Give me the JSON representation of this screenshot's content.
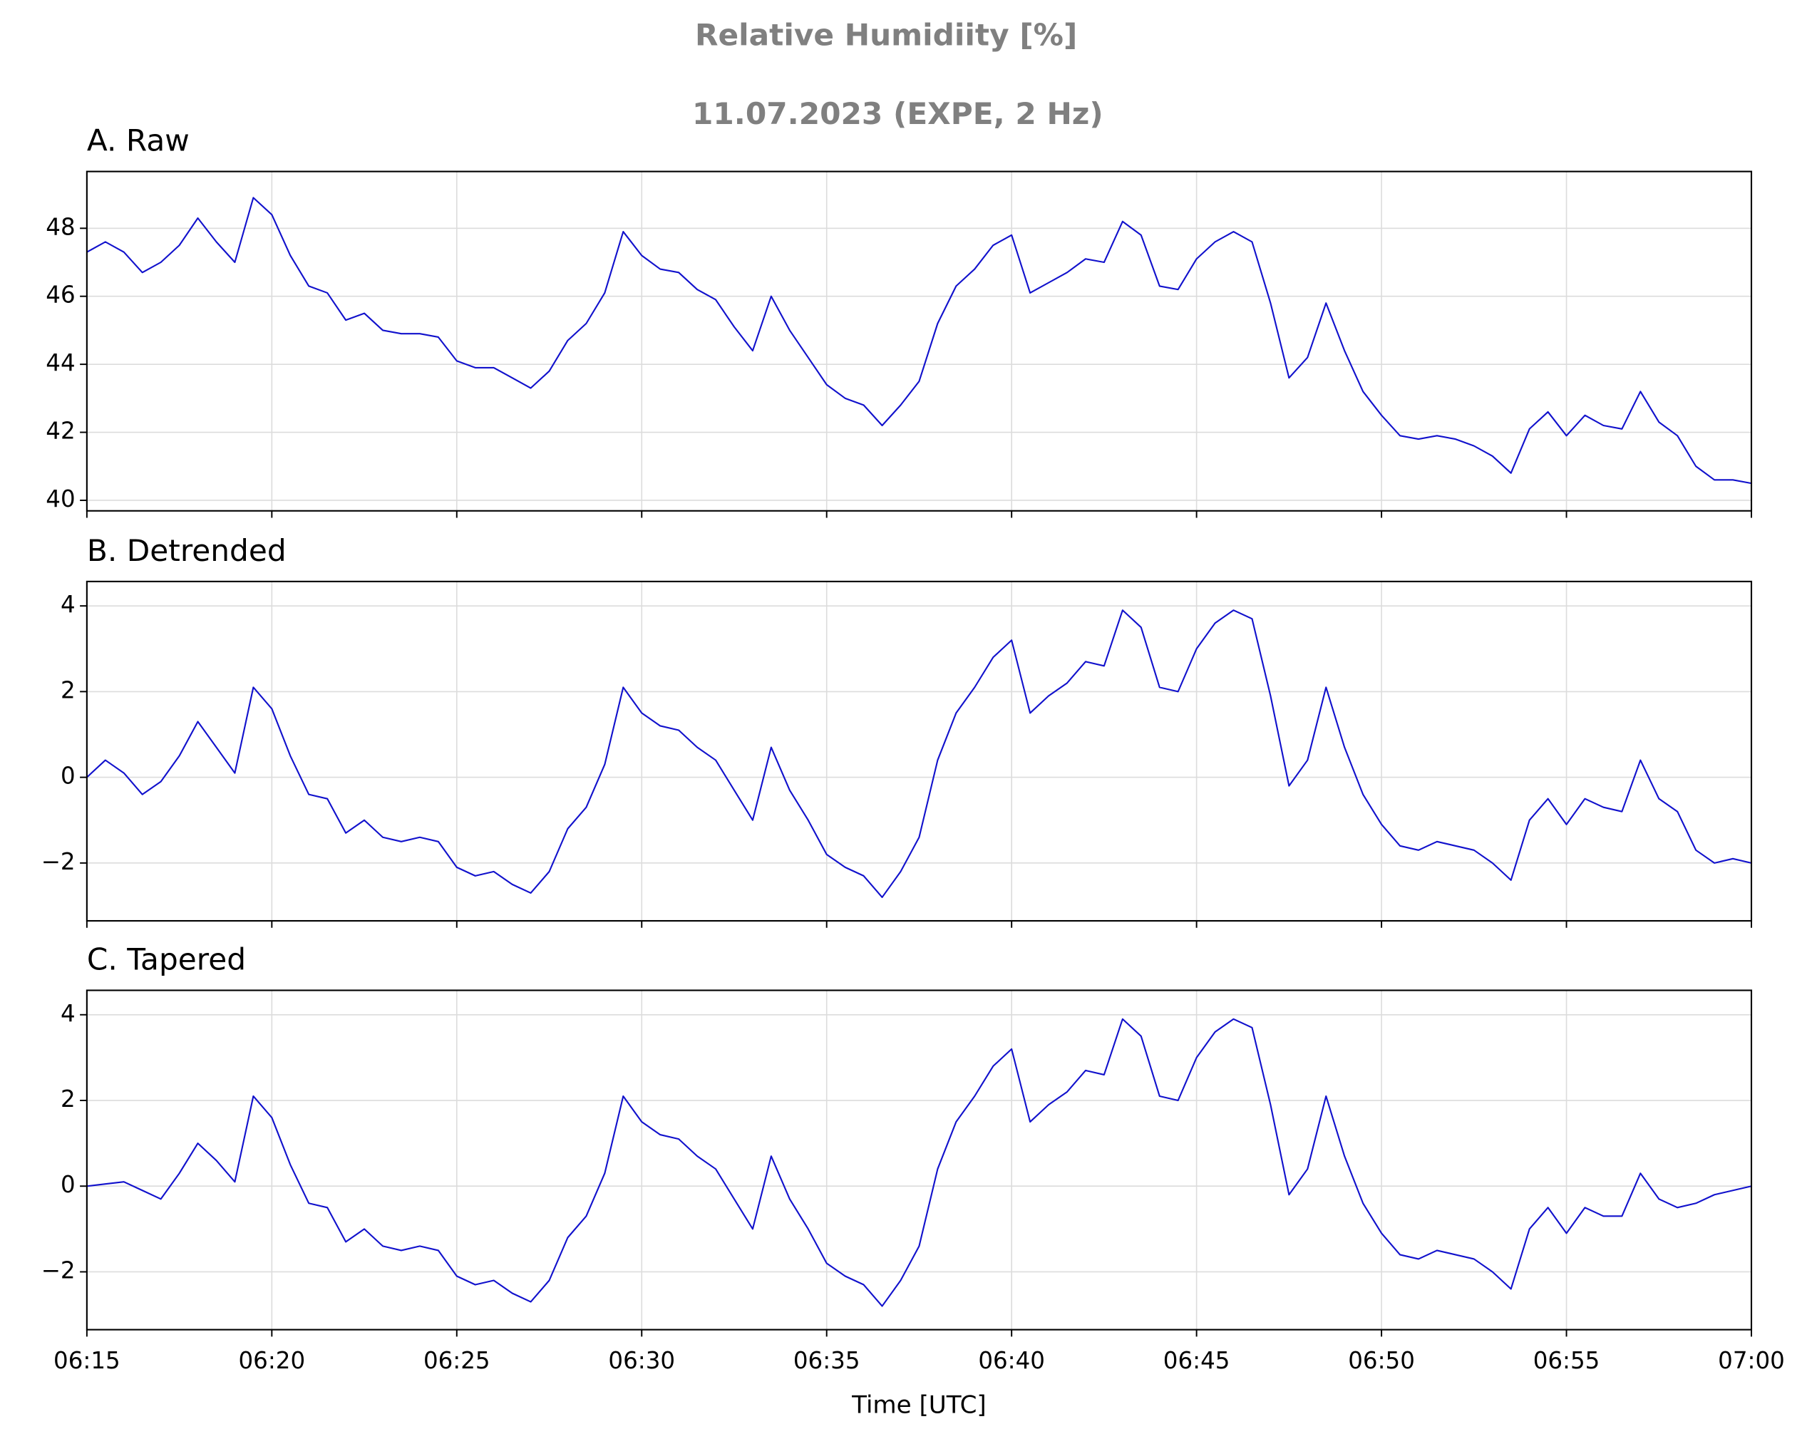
{
  "figure": {
    "title": "Relative Humidiity [%]",
    "subtitle": "11.07.2023 (EXPE, 2 Hz)"
  },
  "chart_data": [
    {
      "type": "line",
      "title": "A. Raw",
      "grid": true,
      "x": [
        "06:15:00",
        "06:15:30",
        "06:16:00",
        "06:16:30",
        "06:17:00",
        "06:17:30",
        "06:18:00",
        "06:18:30",
        "06:19:00",
        "06:19:30",
        "06:20:00",
        "06:20:30",
        "06:21:00",
        "06:21:30",
        "06:22:00",
        "06:22:30",
        "06:23:00",
        "06:23:30",
        "06:24:00",
        "06:24:30",
        "06:25:00",
        "06:25:30",
        "06:26:00",
        "06:26:30",
        "06:27:00",
        "06:27:30",
        "06:28:00",
        "06:28:30",
        "06:29:00",
        "06:29:30",
        "06:30:00",
        "06:30:30",
        "06:31:00",
        "06:31:30",
        "06:32:00",
        "06:32:30",
        "06:33:00",
        "06:33:30",
        "06:34:00",
        "06:34:30",
        "06:35:00",
        "06:35:30",
        "06:36:00",
        "06:36:30",
        "06:37:00",
        "06:37:30",
        "06:38:00",
        "06:38:30",
        "06:39:00",
        "06:39:30",
        "06:40:00",
        "06:40:30",
        "06:41:00",
        "06:41:30",
        "06:42:00",
        "06:42:30",
        "06:43:00",
        "06:43:30",
        "06:44:00",
        "06:44:30",
        "06:45:00",
        "06:45:30",
        "06:46:00",
        "06:46:30",
        "06:47:00",
        "06:47:30",
        "06:48:00",
        "06:48:30",
        "06:49:00",
        "06:49:30",
        "06:50:00",
        "06:50:30",
        "06:51:00",
        "06:51:30",
        "06:52:00",
        "06:52:30",
        "06:53:00",
        "06:53:30",
        "06:54:00",
        "06:54:30",
        "06:55:00",
        "06:55:30",
        "06:56:00",
        "06:56:30",
        "06:57:00",
        "06:57:30",
        "06:58:00",
        "06:58:30",
        "06:59:00",
        "06:59:30",
        "07:00:00"
      ],
      "series": [
        {
          "color": "#1111cc",
          "values": [
            47.3,
            47.6,
            47.3,
            46.7,
            47.0,
            47.5,
            48.3,
            47.6,
            47.0,
            48.9,
            48.4,
            47.2,
            46.3,
            46.1,
            45.3,
            45.5,
            45.0,
            44.9,
            44.9,
            44.8,
            44.1,
            43.9,
            43.9,
            43.6,
            43.3,
            43.8,
            44.7,
            45.2,
            46.1,
            47.9,
            47.2,
            46.8,
            46.7,
            46.2,
            45.9,
            45.1,
            44.4,
            46.0,
            45.0,
            44.2,
            43.4,
            43.0,
            42.8,
            42.2,
            42.8,
            43.5,
            45.2,
            46.3,
            46.8,
            47.5,
            47.8,
            46.1,
            46.4,
            46.7,
            47.1,
            47.0,
            48.2,
            47.8,
            46.3,
            46.2,
            47.1,
            47.6,
            47.9,
            47.6,
            45.8,
            43.6,
            44.2,
            45.8,
            44.4,
            43.2,
            42.5,
            41.9,
            41.8,
            41.9,
            41.8,
            41.6,
            41.3,
            40.8,
            42.1,
            42.6,
            41.9,
            42.5,
            42.2,
            42.1,
            43.2,
            42.3,
            41.9,
            41.0,
            40.6,
            40.6,
            40.5
          ]
        }
      ],
      "xlim": [
        "06:15",
        "07:00"
      ],
      "xticks": [
        "06:15",
        "06:20",
        "06:25",
        "06:30",
        "06:35",
        "06:40",
        "06:45",
        "06:50",
        "06:55",
        "07:00"
      ],
      "ylim": [
        39.69,
        49.67
      ],
      "yticks": [
        40,
        42,
        44,
        46,
        48
      ]
    },
    {
      "type": "line",
      "title": "B. Detrended",
      "grid": true,
      "x": [
        "06:15:00",
        "06:15:30",
        "06:16:00",
        "06:16:30",
        "06:17:00",
        "06:17:30",
        "06:18:00",
        "06:18:30",
        "06:19:00",
        "06:19:30",
        "06:20:00",
        "06:20:30",
        "06:21:00",
        "06:21:30",
        "06:22:00",
        "06:22:30",
        "06:23:00",
        "06:23:30",
        "06:24:00",
        "06:24:30",
        "06:25:00",
        "06:25:30",
        "06:26:00",
        "06:26:30",
        "06:27:00",
        "06:27:30",
        "06:28:00",
        "06:28:30",
        "06:29:00",
        "06:29:30",
        "06:30:00",
        "06:30:30",
        "06:31:00",
        "06:31:30",
        "06:32:00",
        "06:32:30",
        "06:33:00",
        "06:33:30",
        "06:34:00",
        "06:34:30",
        "06:35:00",
        "06:35:30",
        "06:36:00",
        "06:36:30",
        "06:37:00",
        "06:37:30",
        "06:38:00",
        "06:38:30",
        "06:39:00",
        "06:39:30",
        "06:40:00",
        "06:40:30",
        "06:41:00",
        "06:41:30",
        "06:42:00",
        "06:42:30",
        "06:43:00",
        "06:43:30",
        "06:44:00",
        "06:44:30",
        "06:45:00",
        "06:45:30",
        "06:46:00",
        "06:46:30",
        "06:47:00",
        "06:47:30",
        "06:48:00",
        "06:48:30",
        "06:49:00",
        "06:49:30",
        "06:50:00",
        "06:50:30",
        "06:51:00",
        "06:51:30",
        "06:52:00",
        "06:52:30",
        "06:53:00",
        "06:53:30",
        "06:54:00",
        "06:54:30",
        "06:55:00",
        "06:55:30",
        "06:56:00",
        "06:56:30",
        "06:57:00",
        "06:57:30",
        "06:58:00",
        "06:58:30",
        "06:59:00",
        "06:59:30",
        "07:00:00"
      ],
      "series": [
        {
          "color": "#1111cc",
          "values": [
            0.0,
            0.4,
            0.1,
            -0.4,
            -0.1,
            0.5,
            1.3,
            0.7,
            0.1,
            2.1,
            1.6,
            0.5,
            -0.4,
            -0.5,
            -1.3,
            -1.0,
            -1.4,
            -1.5,
            -1.4,
            -1.5,
            -2.1,
            -2.3,
            -2.2,
            -2.5,
            -2.7,
            -2.2,
            -1.2,
            -0.7,
            0.3,
            2.1,
            1.5,
            1.2,
            1.1,
            0.7,
            0.4,
            -0.3,
            -1.0,
            0.7,
            -0.3,
            -1.0,
            -1.8,
            -2.1,
            -2.3,
            -2.8,
            -2.2,
            -1.4,
            0.4,
            1.5,
            2.1,
            2.8,
            3.2,
            1.5,
            1.9,
            2.2,
            2.7,
            2.6,
            3.9,
            3.5,
            2.1,
            2.0,
            3.0,
            3.6,
            3.9,
            3.7,
            1.9,
            -0.2,
            0.4,
            2.1,
            0.7,
            -0.4,
            -1.1,
            -1.6,
            -1.7,
            -1.5,
            -1.6,
            -1.7,
            -2.0,
            -2.4,
            -1.0,
            -0.5,
            -1.1,
            -0.5,
            -0.7,
            -0.8,
            0.4,
            -0.5,
            -0.8,
            -1.7,
            -2.0,
            -1.9,
            -2.0
          ]
        }
      ],
      "xlim": [
        "06:15",
        "07:00"
      ],
      "xticks": [
        "06:15",
        "06:20",
        "06:25",
        "06:30",
        "06:35",
        "06:40",
        "06:45",
        "06:50",
        "06:55",
        "07:00"
      ],
      "ylim": [
        -3.35,
        4.57
      ],
      "yticks": [
        {
          "value": -2,
          "label": "−2"
        },
        0,
        2,
        4
      ]
    },
    {
      "type": "line",
      "title": "C. Tapered",
      "grid": true,
      "xlabel": "Time [UTC]",
      "x": [
        "06:15:00",
        "06:15:30",
        "06:16:00",
        "06:16:30",
        "06:17:00",
        "06:17:30",
        "06:18:00",
        "06:18:30",
        "06:19:00",
        "06:19:30",
        "06:20:00",
        "06:20:30",
        "06:21:00",
        "06:21:30",
        "06:22:00",
        "06:22:30",
        "06:23:00",
        "06:23:30",
        "06:24:00",
        "06:24:30",
        "06:25:00",
        "06:25:30",
        "06:26:00",
        "06:26:30",
        "06:27:00",
        "06:27:30",
        "06:28:00",
        "06:28:30",
        "06:29:00",
        "06:29:30",
        "06:30:00",
        "06:30:30",
        "06:31:00",
        "06:31:30",
        "06:32:00",
        "06:32:30",
        "06:33:00",
        "06:33:30",
        "06:34:00",
        "06:34:30",
        "06:35:00",
        "06:35:30",
        "06:36:00",
        "06:36:30",
        "06:37:00",
        "06:37:30",
        "06:38:00",
        "06:38:30",
        "06:39:00",
        "06:39:30",
        "06:40:00",
        "06:40:30",
        "06:41:00",
        "06:41:30",
        "06:42:00",
        "06:42:30",
        "06:43:00",
        "06:43:30",
        "06:44:00",
        "06:44:30",
        "06:45:00",
        "06:45:30",
        "06:46:00",
        "06:46:30",
        "06:47:00",
        "06:47:30",
        "06:48:00",
        "06:48:30",
        "06:49:00",
        "06:49:30",
        "06:50:00",
        "06:50:30",
        "06:51:00",
        "06:51:30",
        "06:52:00",
        "06:52:30",
        "06:53:00",
        "06:53:30",
        "06:54:00",
        "06:54:30",
        "06:55:00",
        "06:55:30",
        "06:56:00",
        "06:56:30",
        "06:57:00",
        "06:57:30",
        "06:58:00",
        "06:58:30",
        "06:59:00",
        "06:59:30",
        "07:00:00"
      ],
      "series": [
        {
          "color": "#1111cc",
          "values": [
            0.0,
            0.05,
            0.1,
            -0.1,
            -0.3,
            0.3,
            1.0,
            0.6,
            0.1,
            2.1,
            1.6,
            0.5,
            -0.4,
            -0.5,
            -1.3,
            -1.0,
            -1.4,
            -1.5,
            -1.4,
            -1.5,
            -2.1,
            -2.3,
            -2.2,
            -2.5,
            -2.7,
            -2.2,
            -1.2,
            -0.7,
            0.3,
            2.1,
            1.5,
            1.2,
            1.1,
            0.7,
            0.4,
            -0.3,
            -1.0,
            0.7,
            -0.3,
            -1.0,
            -1.8,
            -2.1,
            -2.3,
            -2.8,
            -2.2,
            -1.4,
            0.4,
            1.5,
            2.1,
            2.8,
            3.2,
            1.5,
            1.9,
            2.2,
            2.7,
            2.6,
            3.9,
            3.5,
            2.1,
            2.0,
            3.0,
            3.6,
            3.9,
            3.7,
            1.9,
            -0.2,
            0.4,
            2.1,
            0.7,
            -0.4,
            -1.1,
            -1.6,
            -1.7,
            -1.5,
            -1.6,
            -1.7,
            -2.0,
            -2.4,
            -1.0,
            -0.5,
            -1.1,
            -0.5,
            -0.7,
            -0.7,
            0.3,
            -0.3,
            -0.5,
            -0.4,
            -0.2,
            -0.1,
            0.0
          ]
        }
      ],
      "xlim": [
        "06:15",
        "07:00"
      ],
      "xticks": [
        "06:15",
        "06:20",
        "06:25",
        "06:30",
        "06:35",
        "06:40",
        "06:45",
        "06:50",
        "06:55",
        "07:00"
      ],
      "ylim": [
        -3.35,
        4.57
      ],
      "yticks": [
        {
          "value": -2,
          "label": "−2"
        },
        0,
        2,
        4
      ]
    }
  ]
}
